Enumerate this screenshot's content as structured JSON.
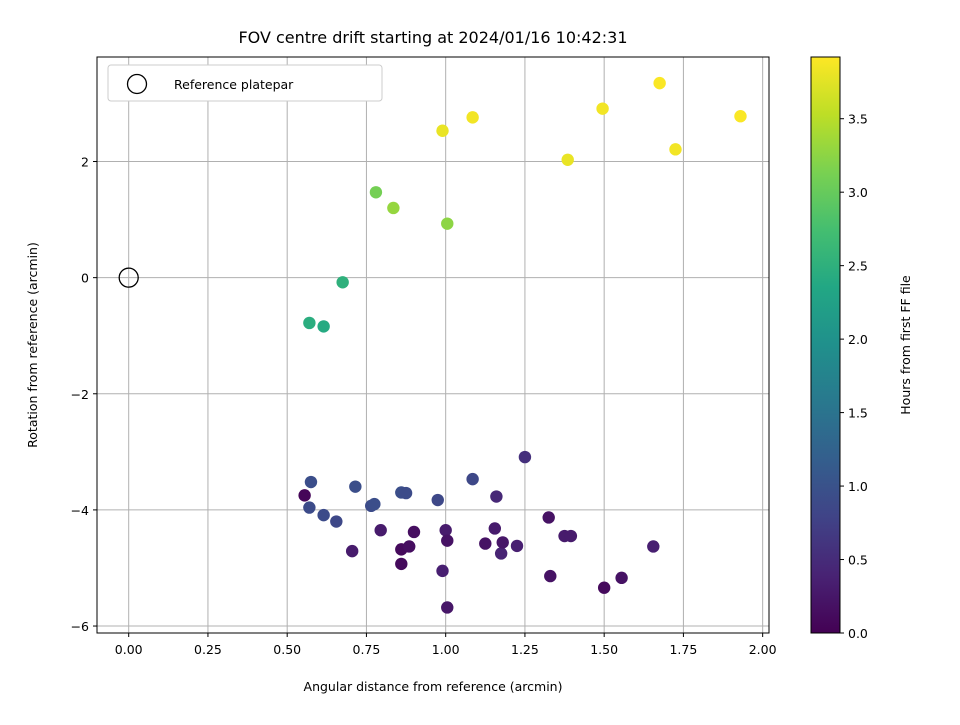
{
  "chart_data": {
    "type": "scatter",
    "title": "FOV centre drift starting at 2024/01/16 10:42:31",
    "xlabel": "Angular distance from reference (arcmin)",
    "ylabel": "Rotation from reference (arcmin)",
    "xlim": [
      -0.1,
      2.02
    ],
    "ylim": [
      -6.12,
      3.8
    ],
    "xticks": [
      0.0,
      0.25,
      0.5,
      0.75,
      1.0,
      1.25,
      1.5,
      1.75,
      2.0
    ],
    "xtick_labels": [
      "0.00",
      "0.25",
      "0.50",
      "0.75",
      "1.00",
      "1.25",
      "1.50",
      "1.75",
      "2.00"
    ],
    "yticks": [
      -6,
      -4,
      -2,
      0,
      2
    ],
    "ytick_labels": [
      "−6",
      "−4",
      "−2",
      "0",
      "2"
    ],
    "grid": true,
    "legend": {
      "placement": "top-left",
      "entries": [
        {
          "label": "Reference platepar",
          "marker": "open-circle",
          "color": "#000000"
        }
      ]
    },
    "reference_point": {
      "x": 0.0,
      "y": 0.0
    },
    "colorbar": {
      "label": "Hours from first FF file",
      "range": [
        0.0,
        3.92
      ],
      "colormap": "viridis",
      "ticks": [
        0.0,
        0.5,
        1.0,
        1.5,
        2.0,
        2.5,
        3.0,
        3.5
      ],
      "tick_labels": [
        "0.0",
        "0.5",
        "1.0",
        "1.5",
        "2.0",
        "2.5",
        "3.0",
        "3.5"
      ]
    },
    "points": [
      {
        "x": 0.555,
        "y": -3.75,
        "c": 0.05
      },
      {
        "x": 0.575,
        "y": -3.52,
        "c": 0.95
      },
      {
        "x": 0.57,
        "y": -3.96,
        "c": 0.9
      },
      {
        "x": 0.615,
        "y": -4.09,
        "c": 0.9
      },
      {
        "x": 0.655,
        "y": -4.2,
        "c": 0.85
      },
      {
        "x": 0.705,
        "y": -4.71,
        "c": 0.3
      },
      {
        "x": 0.715,
        "y": -3.6,
        "c": 0.95
      },
      {
        "x": 0.765,
        "y": -3.93,
        "c": 0.9
      },
      {
        "x": 0.775,
        "y": -3.9,
        "c": 0.95
      },
      {
        "x": 0.795,
        "y": -4.35,
        "c": 0.3
      },
      {
        "x": 0.86,
        "y": -3.7,
        "c": 0.95
      },
      {
        "x": 0.875,
        "y": -3.71,
        "c": 0.9
      },
      {
        "x": 0.86,
        "y": -4.68,
        "c": 0.1
      },
      {
        "x": 0.86,
        "y": -4.93,
        "c": 0.1
      },
      {
        "x": 0.885,
        "y": -4.63,
        "c": 0.15
      },
      {
        "x": 0.9,
        "y": -4.38,
        "c": 0.15
      },
      {
        "x": 0.975,
        "y": -3.83,
        "c": 0.85
      },
      {
        "x": 0.99,
        "y": -5.05,
        "c": 0.35
      },
      {
        "x": 1.0,
        "y": -4.35,
        "c": 0.3
      },
      {
        "x": 1.005,
        "y": -4.53,
        "c": 0.2
      },
      {
        "x": 1.005,
        "y": -5.68,
        "c": 0.25
      },
      {
        "x": 1.085,
        "y": -3.47,
        "c": 0.85
      },
      {
        "x": 1.125,
        "y": -4.58,
        "c": 0.2
      },
      {
        "x": 1.155,
        "y": -4.32,
        "c": 0.3
      },
      {
        "x": 1.16,
        "y": -3.77,
        "c": 0.45
      },
      {
        "x": 1.175,
        "y": -4.75,
        "c": 0.4
      },
      {
        "x": 1.18,
        "y": -4.56,
        "c": 0.25
      },
      {
        "x": 1.225,
        "y": -4.62,
        "c": 0.35
      },
      {
        "x": 1.25,
        "y": -3.09,
        "c": 0.55
      },
      {
        "x": 1.325,
        "y": -4.13,
        "c": 0.2
      },
      {
        "x": 1.33,
        "y": -5.14,
        "c": 0.2
      },
      {
        "x": 1.375,
        "y": -4.45,
        "c": 0.3
      },
      {
        "x": 1.395,
        "y": -4.45,
        "c": 0.3
      },
      {
        "x": 1.5,
        "y": -5.34,
        "c": 0.1
      },
      {
        "x": 1.555,
        "y": -5.17,
        "c": 0.2
      },
      {
        "x": 1.655,
        "y": -4.63,
        "c": 0.35
      },
      {
        "x": 0.57,
        "y": -0.78,
        "c": 2.45
      },
      {
        "x": 0.615,
        "y": -0.84,
        "c": 2.4
      },
      {
        "x": 0.675,
        "y": -0.08,
        "c": 2.5
      },
      {
        "x": 0.78,
        "y": 1.47,
        "c": 3.1
      },
      {
        "x": 0.835,
        "y": 1.2,
        "c": 3.3
      },
      {
        "x": 1.005,
        "y": 0.93,
        "c": 3.25
      },
      {
        "x": 0.99,
        "y": 2.53,
        "c": 3.8
      },
      {
        "x": 1.085,
        "y": 2.76,
        "c": 3.85
      },
      {
        "x": 1.385,
        "y": 2.03,
        "c": 3.8
      },
      {
        "x": 1.495,
        "y": 2.91,
        "c": 3.85
      },
      {
        "x": 1.675,
        "y": 3.35,
        "c": 3.9
      },
      {
        "x": 1.725,
        "y": 2.21,
        "c": 3.85
      },
      {
        "x": 1.93,
        "y": 2.78,
        "c": 3.9
      }
    ]
  }
}
